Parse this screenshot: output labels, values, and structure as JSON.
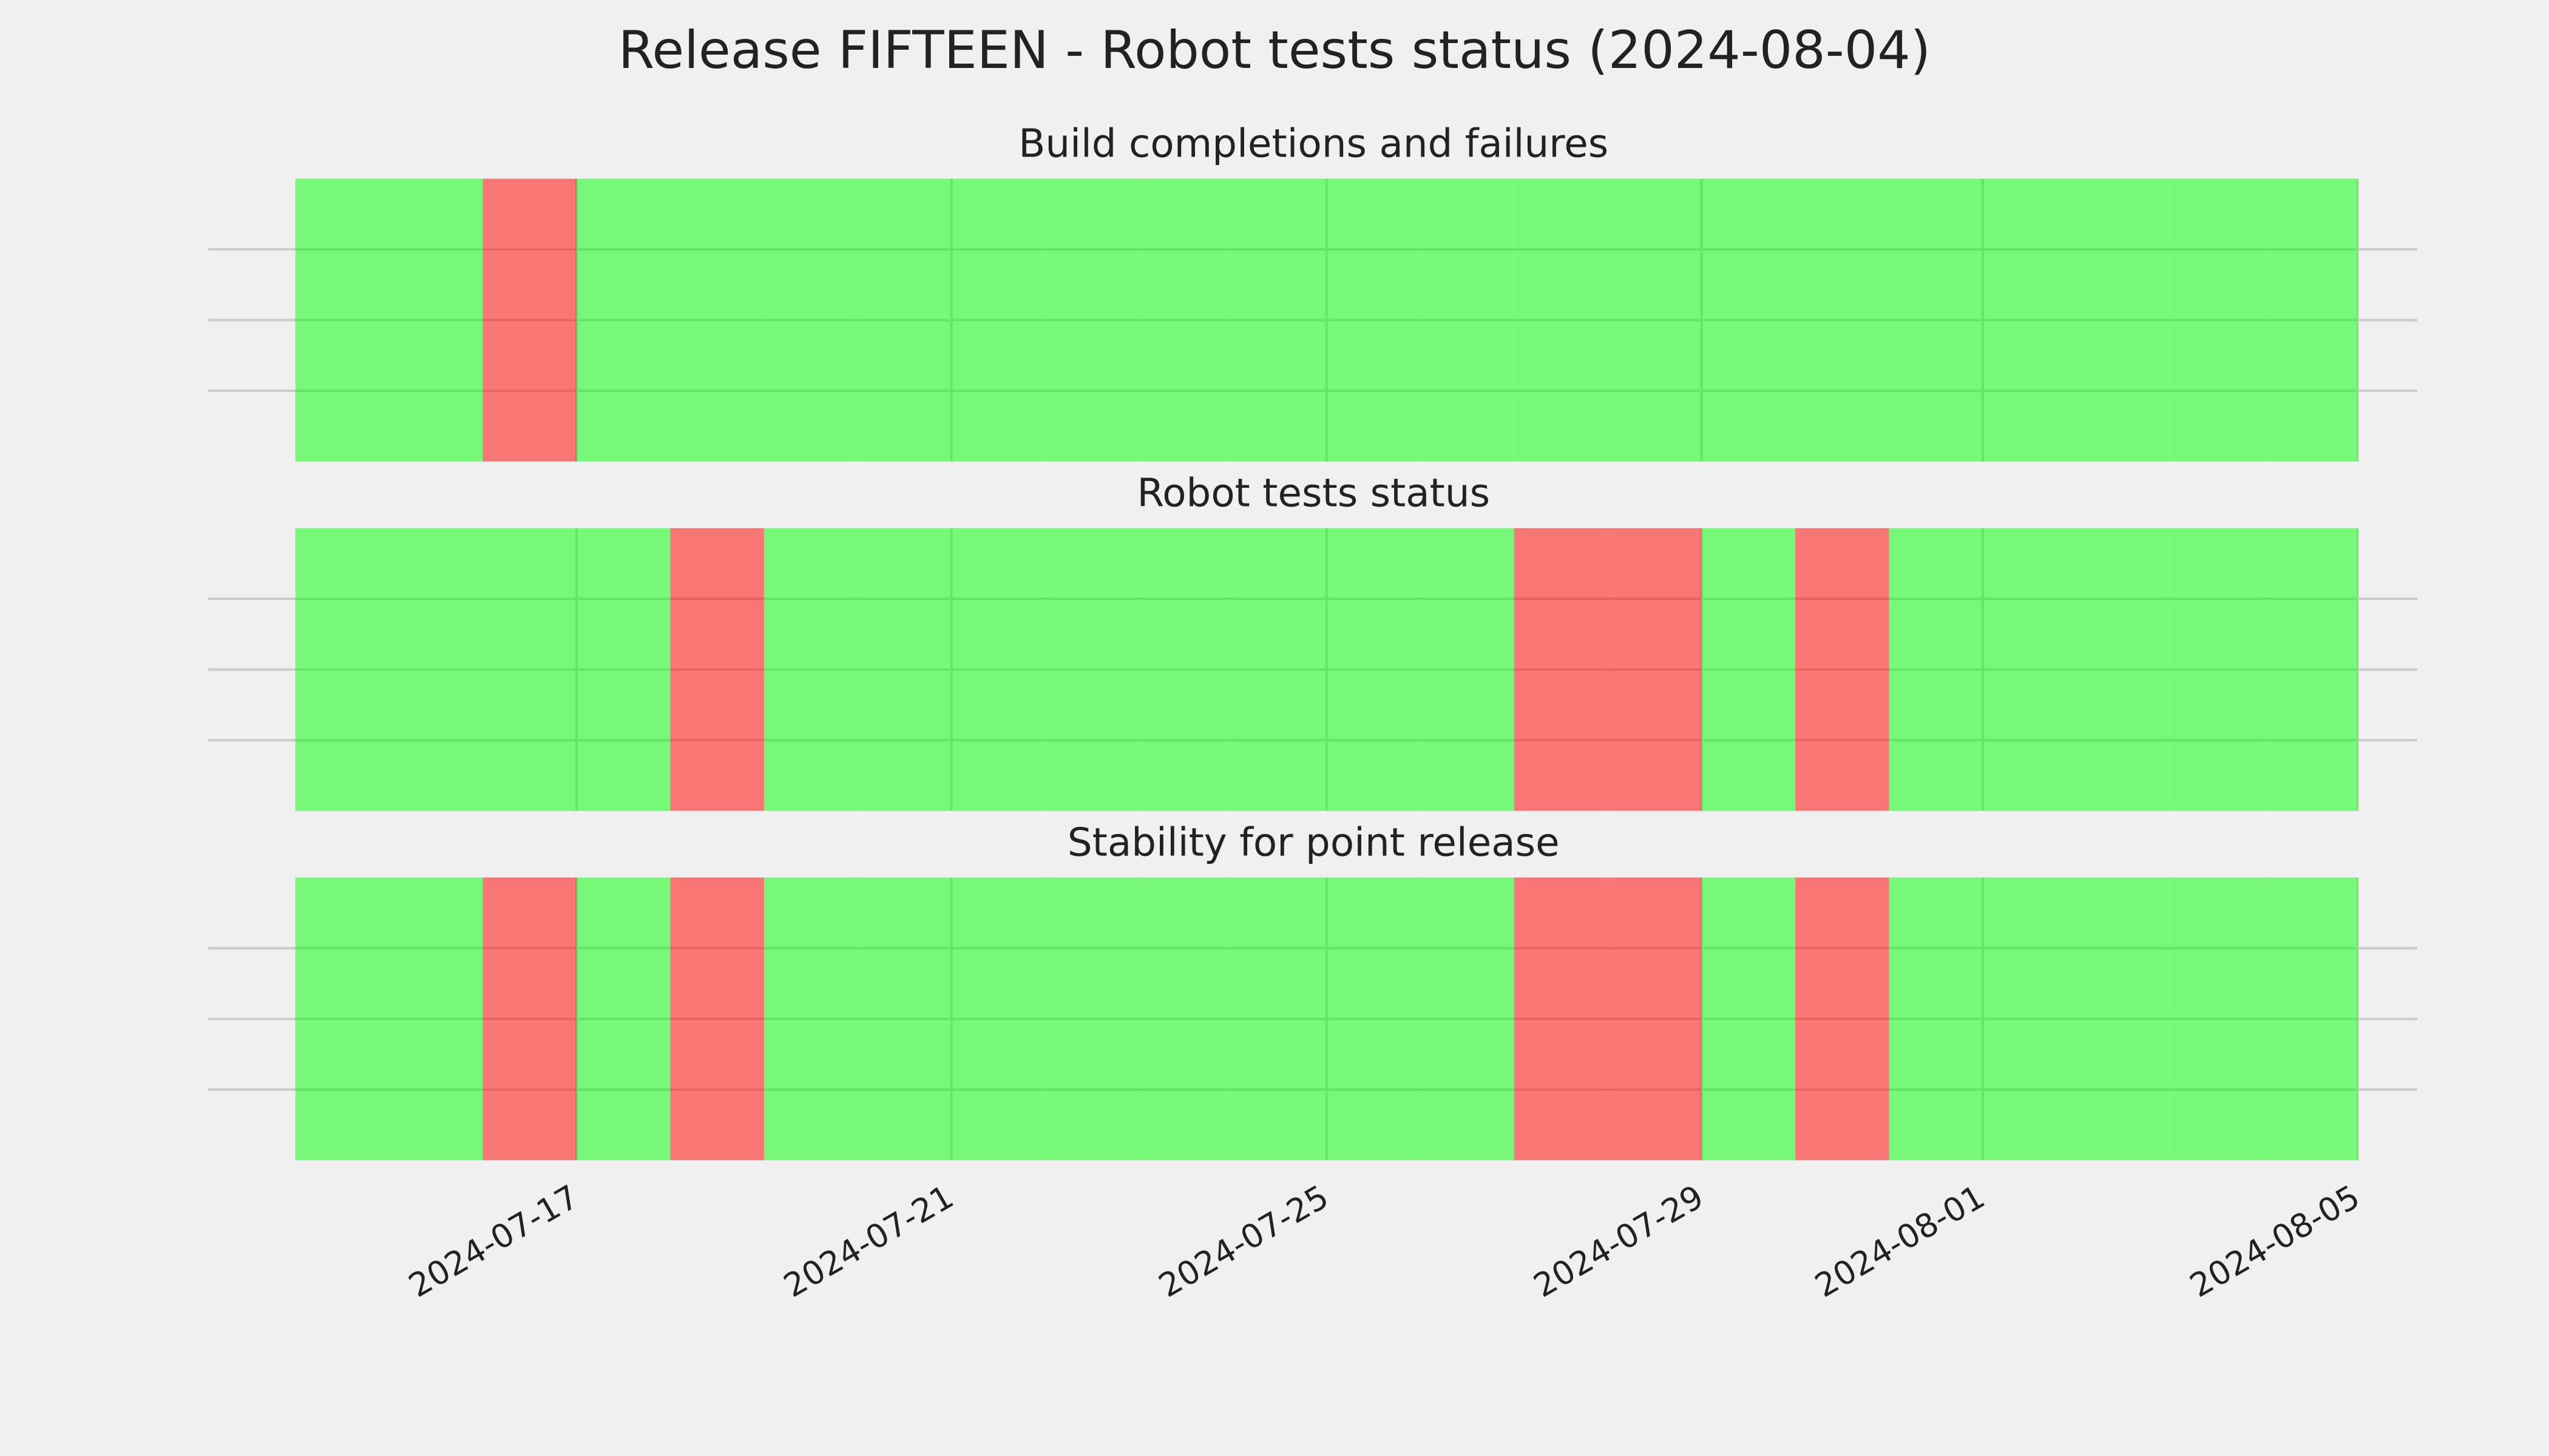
{
  "title": "Release FIFTEEN - Robot tests status (2024-08-04)",
  "chart_data": [
    {
      "type": "status",
      "title": "Build completions and failures",
      "x": [
        "2024-07-14",
        "2024-07-15",
        "2024-07-16",
        "2024-07-17",
        "2024-07-18",
        "2024-07-19",
        "2024-07-20",
        "2024-07-21",
        "2024-07-22",
        "2024-07-23",
        "2024-07-24",
        "2024-07-25",
        "2024-07-26",
        "2024-07-27",
        "2024-07-28",
        "2024-07-29",
        "2024-07-30",
        "2024-07-31",
        "2024-08-01",
        "2024-08-02",
        "2024-08-03",
        "2024-08-04"
      ],
      "values": [
        1,
        1,
        0,
        1,
        1,
        1,
        1,
        1,
        1,
        1,
        1,
        1,
        1,
        1,
        1,
        1,
        1,
        1,
        1,
        1,
        1,
        1
      ],
      "pass_color": "#00ff00",
      "fail_color": "#ff0000",
      "xlim": [
        "2024-07-13",
        "2024-08-06"
      ],
      "xticks": [
        "2024-07-17",
        "2024-07-21",
        "2024-07-25",
        "2024-07-29",
        "2024-08-01",
        "2024-08-05"
      ],
      "ylim": [
        0,
        1
      ],
      "yticks": [
        0.25,
        0.5,
        0.75
      ],
      "grid": true
    },
    {
      "type": "status",
      "title": "Robot tests status",
      "x": [
        "2024-07-14",
        "2024-07-15",
        "2024-07-16",
        "2024-07-17",
        "2024-07-18",
        "2024-07-19",
        "2024-07-20",
        "2024-07-21",
        "2024-07-22",
        "2024-07-23",
        "2024-07-24",
        "2024-07-25",
        "2024-07-26",
        "2024-07-27",
        "2024-07-28",
        "2024-07-29",
        "2024-07-30",
        "2024-07-31",
        "2024-08-01",
        "2024-08-02",
        "2024-08-03",
        "2024-08-04"
      ],
      "values": [
        1,
        1,
        1,
        1,
        0,
        1,
        1,
        1,
        1,
        1,
        1,
        1,
        1,
        0,
        0,
        1,
        0,
        1,
        1,
        1,
        1,
        1
      ],
      "pass_color": "#00ff00",
      "fail_color": "#ff0000",
      "xlim": [
        "2024-07-13",
        "2024-08-06"
      ],
      "xticks": [
        "2024-07-17",
        "2024-07-21",
        "2024-07-25",
        "2024-07-29",
        "2024-08-01",
        "2024-08-05"
      ],
      "ylim": [
        0,
        1
      ],
      "yticks": [
        0.25,
        0.5,
        0.75
      ],
      "grid": true
    },
    {
      "type": "status",
      "title": "Stability for point release",
      "x": [
        "2024-07-14",
        "2024-07-15",
        "2024-07-16",
        "2024-07-17",
        "2024-07-18",
        "2024-07-19",
        "2024-07-20",
        "2024-07-21",
        "2024-07-22",
        "2024-07-23",
        "2024-07-24",
        "2024-07-25",
        "2024-07-26",
        "2024-07-27",
        "2024-07-28",
        "2024-07-29",
        "2024-07-30",
        "2024-07-31",
        "2024-08-01",
        "2024-08-02",
        "2024-08-03",
        "2024-08-04"
      ],
      "values": [
        1,
        1,
        0,
        1,
        0,
        1,
        1,
        1,
        1,
        1,
        1,
        1,
        1,
        0,
        0,
        1,
        0,
        1,
        1,
        1,
        1,
        1
      ],
      "pass_color": "#00ff00",
      "fail_color": "#ff0000",
      "xlim": [
        "2024-07-13",
        "2024-08-06"
      ],
      "xticks": [
        "2024-07-17",
        "2024-07-21",
        "2024-07-25",
        "2024-07-29",
        "2024-08-01",
        "2024-08-05"
      ],
      "ylim": [
        0,
        1
      ],
      "yticks": [
        0.25,
        0.5,
        0.75
      ],
      "grid": true
    }
  ]
}
